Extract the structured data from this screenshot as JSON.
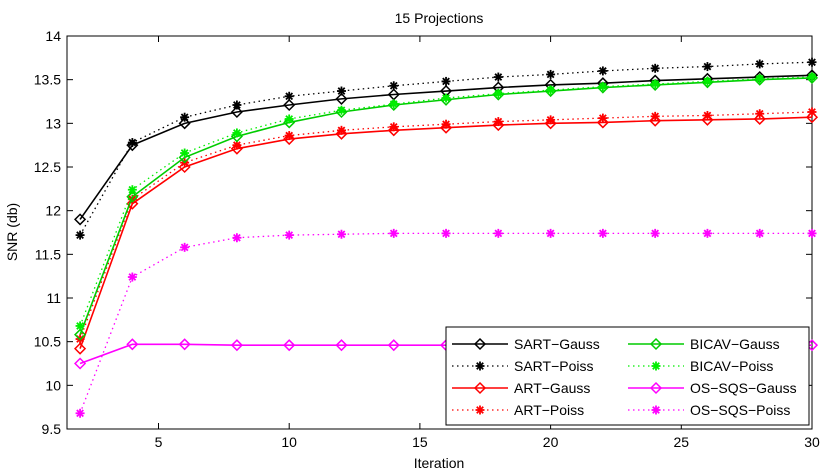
{
  "chart_data": {
    "type": "line",
    "title": "15 Projections",
    "xlabel": "Iteration",
    "ylabel": "SNR (db)",
    "xlim": [
      1.5,
      30
    ],
    "ylim": [
      9.5,
      14
    ],
    "xticks": [
      5,
      10,
      15,
      20,
      25,
      30
    ],
    "yticks": [
      9.5,
      10,
      10.5,
      11,
      11.5,
      12,
      12.5,
      13,
      13.5,
      14
    ],
    "x": [
      2,
      4,
      6,
      8,
      10,
      12,
      14,
      16,
      18,
      20,
      22,
      24,
      26,
      28,
      30
    ],
    "legend_position": "bottom-right",
    "series": [
      {
        "name": "SART−Gauss",
        "color": "#000000",
        "line": "solid",
        "marker": "diamond",
        "values": [
          11.9,
          12.75,
          13.0,
          13.13,
          13.21,
          13.28,
          13.33,
          13.37,
          13.41,
          13.44,
          13.46,
          13.49,
          13.51,
          13.53,
          13.55
        ]
      },
      {
        "name": "SART−Poiss",
        "color": "#000000",
        "line": "dotted",
        "marker": "asterisk",
        "values": [
          11.72,
          12.78,
          13.07,
          13.21,
          13.31,
          13.37,
          13.43,
          13.48,
          13.53,
          13.56,
          13.6,
          13.63,
          13.65,
          13.68,
          13.7
        ]
      },
      {
        "name": "ART−Gauss",
        "color": "#ff0000",
        "line": "solid",
        "marker": "diamond",
        "values": [
          10.42,
          12.08,
          12.5,
          12.71,
          12.82,
          12.88,
          12.92,
          12.95,
          12.98,
          13.0,
          13.01,
          13.03,
          13.04,
          13.05,
          13.07
        ]
      },
      {
        "name": "ART−Poiss",
        "color": "#ff0000",
        "line": "dotted",
        "marker": "asterisk",
        "values": [
          10.53,
          12.13,
          12.55,
          12.75,
          12.86,
          12.92,
          12.96,
          12.99,
          13.02,
          13.04,
          13.06,
          13.08,
          13.09,
          13.11,
          13.13
        ]
      },
      {
        "name": "BICAV−Gauss",
        "color": "#00cc00",
        "line": "solid",
        "marker": "diamond",
        "values": [
          10.58,
          12.16,
          12.61,
          12.85,
          13.01,
          13.13,
          13.21,
          13.27,
          13.33,
          13.37,
          13.41,
          13.44,
          13.47,
          13.5,
          13.52
        ]
      },
      {
        "name": "BICAV−Poiss",
        "color": "#00ee00",
        "line": "dotted",
        "marker": "asterisk",
        "values": [
          10.68,
          12.24,
          12.66,
          12.89,
          13.05,
          13.15,
          13.22,
          13.29,
          13.34,
          13.38,
          13.42,
          13.45,
          13.48,
          13.51,
          13.53
        ]
      },
      {
        "name": "OS−SQS−Gauss",
        "color": "#ff00ff",
        "line": "solid",
        "marker": "diamond",
        "values": [
          10.25,
          10.47,
          10.47,
          10.46,
          10.46,
          10.46,
          10.46,
          10.46,
          10.46,
          10.46,
          10.46,
          10.46,
          10.46,
          10.46,
          10.46
        ]
      },
      {
        "name": "OS−SQS−Poiss",
        "color": "#ff00ff",
        "line": "dotted",
        "marker": "asterisk",
        "values": [
          9.68,
          11.24,
          11.58,
          11.69,
          11.72,
          11.73,
          11.74,
          11.74,
          11.74,
          11.74,
          11.74,
          11.74,
          11.74,
          11.74,
          11.74
        ]
      }
    ]
  }
}
